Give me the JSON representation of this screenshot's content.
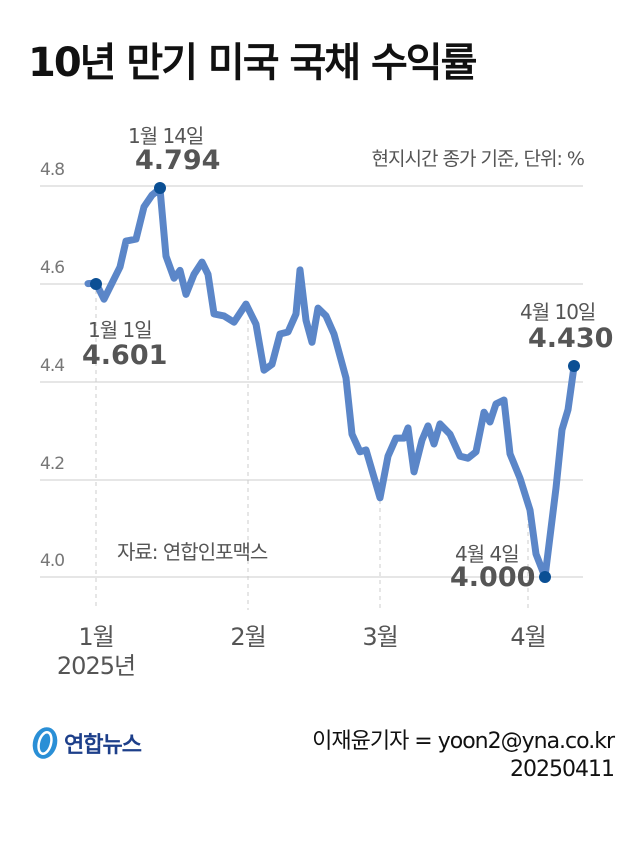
{
  "title": "10년 만기 미국 국채 수익률",
  "unit_note": "현지시간 종가 기준, 단위: %",
  "source": "자료: 연합인포맥스",
  "footer": {
    "logo_text": "연합뉴스",
    "credit": "이재윤기자 = yoon2@yna.co.kr",
    "date": "20250411"
  },
  "colors": {
    "line": "#5b86c8",
    "marker": "#0b4f94",
    "grid": "#dddddd",
    "text": "#555555"
  },
  "chart_data": {
    "type": "line",
    "title": "10년 만기 미국 국채 수익률",
    "subtitle": "현지시간 종가 기준, 단위: %",
    "xlabel": "",
    "ylabel": "%",
    "ylim": [
      4.0,
      4.8
    ],
    "yticks": [
      "4.8",
      "4.6",
      "4.4",
      "4.2",
      "4.0"
    ],
    "xticks": [
      "1월",
      "2월",
      "3월",
      "4월"
    ],
    "x_year_label": "2025년",
    "grid": true,
    "series": [
      {
        "name": "10년 만기 미국 국채 수익률",
        "points": [
          [
            88,
            4.6
          ],
          [
            96,
            4.601
          ],
          [
            104,
            4.568
          ],
          [
            120,
            4.634
          ],
          [
            126,
            4.687
          ],
          [
            136,
            4.691
          ],
          [
            144,
            4.757
          ],
          [
            152,
            4.781
          ],
          [
            160,
            4.794
          ],
          [
            166,
            4.656
          ],
          [
            174,
            4.611
          ],
          [
            180,
            4.627
          ],
          [
            186,
            4.578
          ],
          [
            194,
            4.619
          ],
          [
            202,
            4.644
          ],
          [
            208,
            4.619
          ],
          [
            214,
            4.538
          ],
          [
            224,
            4.534
          ],
          [
            234,
            4.521
          ],
          [
            246,
            4.558
          ],
          [
            256,
            4.517
          ],
          [
            264,
            4.423
          ],
          [
            272,
            4.435
          ],
          [
            280,
            4.497
          ],
          [
            288,
            4.501
          ],
          [
            296,
            4.538
          ],
          [
            300,
            4.628
          ],
          [
            306,
            4.525
          ],
          [
            312,
            4.48
          ],
          [
            318,
            4.55
          ],
          [
            326,
            4.534
          ],
          [
            334,
            4.497
          ],
          [
            340,
            4.452
          ],
          [
            346,
            4.407
          ],
          [
            352,
            4.292
          ],
          [
            360,
            4.256
          ],
          [
            366,
            4.26
          ],
          [
            380,
            4.162
          ],
          [
            388,
            4.247
          ],
          [
            396,
            4.284
          ],
          [
            404,
            4.284
          ],
          [
            408,
            4.305
          ],
          [
            414,
            4.215
          ],
          [
            422,
            4.28
          ],
          [
            428,
            4.309
          ],
          [
            434,
            4.272
          ],
          [
            440,
            4.313
          ],
          [
            450,
            4.292
          ],
          [
            460,
            4.247
          ],
          [
            468,
            4.243
          ],
          [
            476,
            4.256
          ],
          [
            484,
            4.337
          ],
          [
            490,
            4.317
          ],
          [
            496,
            4.354
          ],
          [
            504,
            4.362
          ],
          [
            510,
            4.252
          ],
          [
            520,
            4.202
          ],
          [
            530,
            4.137
          ],
          [
            536,
            4.047
          ],
          [
            545,
            4.0
          ],
          [
            556,
            4.182
          ],
          [
            562,
            4.301
          ],
          [
            568,
            4.342
          ],
          [
            574,
            4.43
          ]
        ]
      }
    ],
    "annotations": [
      {
        "date": "1월 1일",
        "value": "4.601"
      },
      {
        "date": "1월 14일",
        "value": "4.794"
      },
      {
        "date": "4월 4일",
        "value": "4.000"
      },
      {
        "date": "4월 10일",
        "value": "4.430"
      }
    ]
  },
  "annotations": {
    "jan1": {
      "date": "1월 1일",
      "value": "4.601"
    },
    "jan14": {
      "date": "1월 14일",
      "value": "4.794"
    },
    "apr4": {
      "date": "4월 4일",
      "value": "4.000"
    },
    "apr10": {
      "date": "4월 10일",
      "value": "4.430"
    }
  },
  "axis": {
    "y": [
      "4.8",
      "4.6",
      "4.4",
      "4.2",
      "4.0"
    ],
    "x": [
      "1월",
      "2월",
      "3월",
      "4월"
    ],
    "year": "2025년"
  }
}
